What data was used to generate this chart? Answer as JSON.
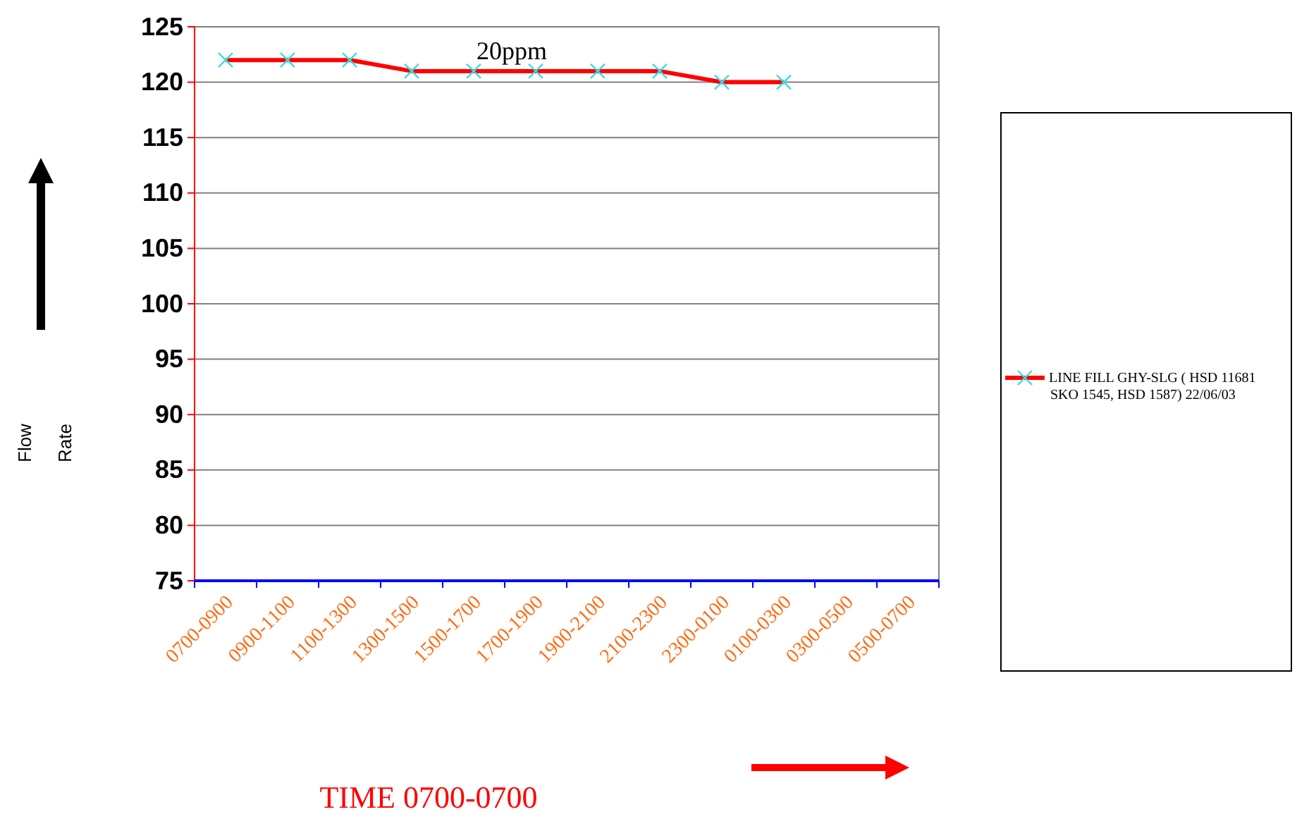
{
  "chart_data": {
    "type": "line",
    "xlabel": "TIME  0700-0700",
    "ylabel": "Flow Rate",
    "categories": [
      "0700-0900",
      "0900-1100",
      "1100-1300",
      "1300-1500",
      "1500-1700",
      "1700-1900",
      "1900-2100",
      "2100-2300",
      "2300-0100",
      "0100-0300",
      "0300-0500",
      "0500-0700"
    ],
    "series": [
      {
        "name": "LINE FILL GHY-SLG ( HSD 11681 SKO 1545,  HSD 1587) 22/06/03",
        "color": "#ff0000",
        "values": [
          122,
          122,
          122,
          121,
          121,
          121,
          121,
          121,
          120,
          120,
          null,
          null
        ]
      }
    ],
    "ylim": [
      75,
      125
    ],
    "yticks": [
      75,
      80,
      85,
      90,
      95,
      100,
      105,
      110,
      115,
      120,
      125
    ],
    "grid": "y",
    "legend": "right",
    "marker": "cross",
    "line_style": "solid",
    "annotations": [
      "20ppm"
    ]
  }
}
